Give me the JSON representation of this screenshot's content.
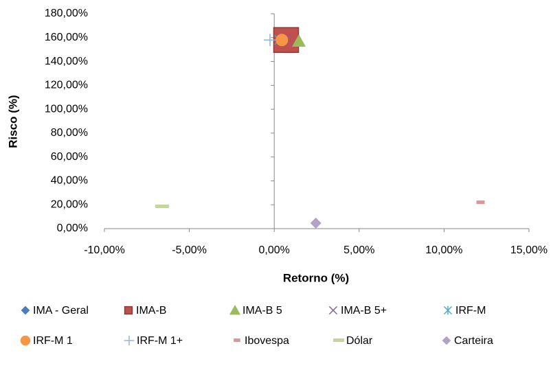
{
  "chart_data": {
    "type": "scatter",
    "xlabel": "Retorno (%)",
    "ylabel": "Risco (%)",
    "xlim": [
      -10,
      15
    ],
    "ylim": [
      0,
      180
    ],
    "xticks": [
      {
        "value": -10,
        "label": "-10,00%"
      },
      {
        "value": -5,
        "label": "-5,00%"
      },
      {
        "value": 0,
        "label": "0,00%"
      },
      {
        "value": 5,
        "label": "5,00%"
      },
      {
        "value": 10,
        "label": "10,00%"
      },
      {
        "value": 15,
        "label": "15,00%"
      }
    ],
    "yticks": [
      {
        "value": 0,
        "label": "0,00%"
      },
      {
        "value": 20,
        "label": "20,00%"
      },
      {
        "value": 40,
        "label": "40,00%"
      },
      {
        "value": 60,
        "label": "60,00%"
      },
      {
        "value": 80,
        "label": "80,00%"
      },
      {
        "value": 100,
        "label": "100,00%"
      },
      {
        "value": 120,
        "label": "120,00%"
      },
      {
        "value": 140,
        "label": "140,00%"
      },
      {
        "value": 160,
        "label": "160,00%"
      },
      {
        "value": 180,
        "label": "180,00%"
      }
    ],
    "legend": "bottom",
    "series": [
      {
        "name": "IMA - Geral",
        "color": "#4a7ebb",
        "marker": "diamond",
        "x": [
          0.5
        ],
        "values": [
          158
        ]
      },
      {
        "name": "IMA-B",
        "color": "#c0504d",
        "marker": "square",
        "x": [
          0.7
        ],
        "values": [
          158
        ]
      },
      {
        "name": "IMA-B 5",
        "color": "#9bbb59",
        "marker": "triangle",
        "x": [
          1.45
        ],
        "values": [
          157
        ]
      },
      {
        "name": "IMA-B 5+",
        "color": "#8064a2",
        "marker": "x",
        "x": [
          0.7
        ],
        "values": [
          158
        ]
      },
      {
        "name": "IRF-M",
        "color": "#4bacc6",
        "marker": "asterisk",
        "x": [
          0.3
        ],
        "values": [
          158
        ]
      },
      {
        "name": "IRF-M 1",
        "color": "#f79646",
        "marker": "circle",
        "x": [
          0.45
        ],
        "values": [
          158
        ]
      },
      {
        "name": "IRF-M 1+",
        "color": "#95b3d7",
        "marker": "plus",
        "x": [
          -0.25
        ],
        "values": [
          158
        ]
      },
      {
        "name": "Ibovespa",
        "color": "#d99694",
        "marker": "dash",
        "x": [
          12.15
        ],
        "values": [
          21.8
        ]
      },
      {
        "name": "Dólar",
        "color": "#c3d69b",
        "marker": "longdash",
        "x": [
          -6.6
        ],
        "values": [
          18.4
        ]
      },
      {
        "name": "Carteira",
        "color": "#b3a2c7",
        "marker": "diamond",
        "x": [
          2.45
        ],
        "values": [
          4.6
        ]
      }
    ]
  }
}
